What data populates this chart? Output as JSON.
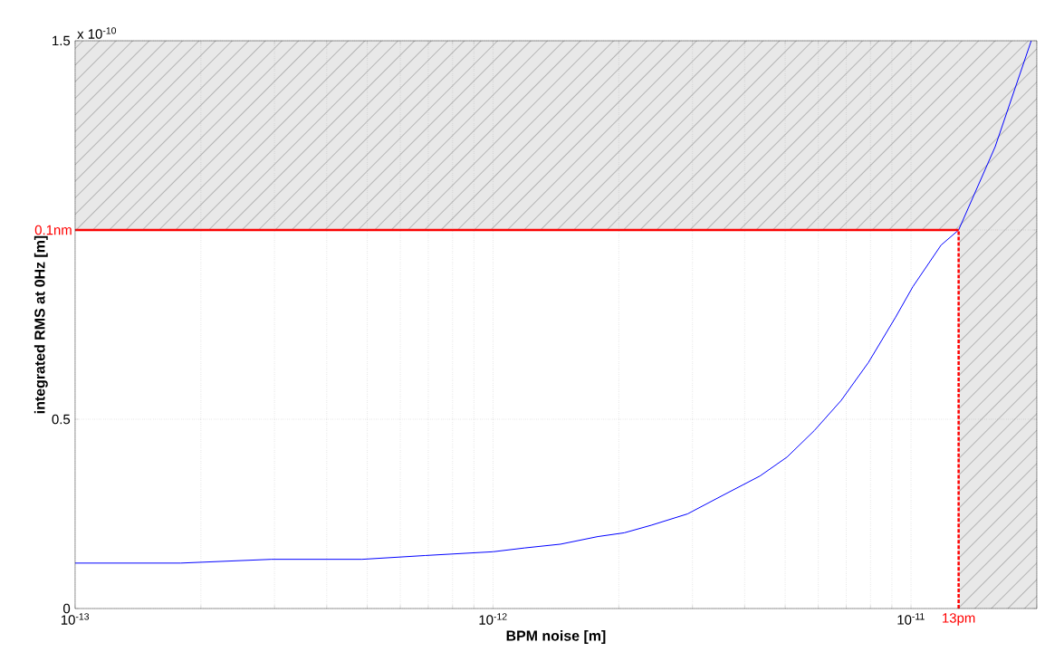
{
  "chart_data": {
    "type": "line",
    "xlabel": "BPM noise [m]",
    "ylabel": "integrated RMS at 0Hz [m]",
    "annotations": [
      "x 10$^{-10}$"
    ],
    "log": "x",
    "grid": true,
    "xlim": [
      1e-13,
      2e-11
    ],
    "ylim": [
      0,
      1.5
    ],
    "xticks": [
      {
        "value": 1e-13,
        "label": "10$^{-13}$"
      },
      {
        "value": 2e-13,
        "label": null
      },
      {
        "value": 3e-13,
        "label": null
      },
      {
        "value": 4e-13,
        "label": null
      },
      {
        "value": 5e-13,
        "label": null
      },
      {
        "value": 6e-13,
        "label": null
      },
      {
        "value": 7e-13,
        "label": null
      },
      {
        "value": 8e-13,
        "label": null
      },
      {
        "value": 9e-13,
        "label": null
      },
      {
        "value": 1e-12,
        "label": "10$^{-12}$"
      },
      {
        "value": 2e-12,
        "label": null
      },
      {
        "value": 3e-12,
        "label": null
      },
      {
        "value": 4e-12,
        "label": null
      },
      {
        "value": 5e-12,
        "label": null
      },
      {
        "value": 6e-12,
        "label": null
      },
      {
        "value": 7e-12,
        "label": null
      },
      {
        "value": 8e-12,
        "label": null
      },
      {
        "value": 9e-12,
        "label": null
      },
      {
        "value": 1e-11,
        "label": "10$^{-11}$"
      },
      {
        "value": 2e-11,
        "label": null
      }
    ],
    "yticks": [
      0,
      0.5,
      {
        "value": 1,
        "label": null
      },
      1.5
    ],
    "ref_lines": [
      {
        "axis": "y",
        "value": 1,
        "label": "0.1nm",
        "color": "#ff0000",
        "line_style": "solid"
      },
      {
        "axis": "x",
        "value": 1.3e-11,
        "label": "13pm",
        "color": "#ff0000",
        "line_style": "dashed"
      }
    ],
    "bands": [
      {
        "axis": "y",
        "from": 1,
        "to": 1.5,
        "color": "#e8e8e8"
      },
      {
        "axis": "x",
        "from": 1.3e-11,
        "to": 2e-11,
        "color": "#e8e8e8"
      }
    ],
    "x": [
      1e-13,
      1.79e-13,
      2.95e-13,
      4.86e-13,
      6.88e-13,
      1e-12,
      1.19e-12,
      1.45e-12,
      1.78e-12,
      2.06e-12,
      2.39e-12,
      2.92e-12,
      3.56e-12,
      4.35e-12,
      5.05e-12,
      5.87e-12,
      6.81e-12,
      7.91e-12,
      9.19e-12,
      1.01e-11,
      1.18e-11,
      1.3e-11,
      1.59e-11,
      1.94e-11
    ],
    "series": [
      {
        "color": "#0000ff",
        "values": [
          0.12,
          0.12,
          0.13,
          0.13,
          0.14,
          0.15,
          0.16,
          0.17,
          0.19,
          0.2,
          0.22,
          0.25,
          0.3,
          0.35,
          0.4,
          0.47,
          0.55,
          0.65,
          0.77,
          0.85,
          0.96,
          1.0,
          1.22,
          1.5
        ]
      }
    ]
  }
}
